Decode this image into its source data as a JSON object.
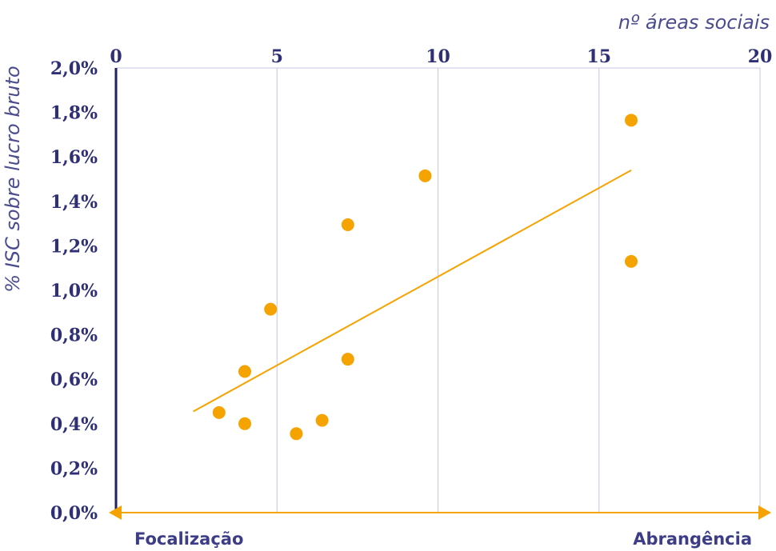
{
  "chart_data": {
    "type": "scatter",
    "xlabel": "nº áreas sociais",
    "ylabel": "% ISC sobre lucro bruto",
    "x_ticks": [
      "0",
      "5",
      "10",
      "15",
      "20"
    ],
    "y_ticks": [
      "0,0%",
      "0,2%",
      "0,4%",
      "0,6%",
      "0,8%",
      "1,0%",
      "1,2%",
      "1,4%",
      "1,6%",
      "1,8%",
      "2,0%"
    ],
    "xlim": [
      0,
      20
    ],
    "ylim": [
      0,
      2.0
    ],
    "grid": {
      "vertical": true,
      "horizontal": false
    },
    "series": [
      {
        "points": [
          {
            "x": 3.2,
            "y": 0.45
          },
          {
            "x": 4.0,
            "y": 0.4
          },
          {
            "x": 4.0,
            "y": 0.635
          },
          {
            "x": 4.8,
            "y": 0.915
          },
          {
            "x": 5.6,
            "y": 0.355
          },
          {
            "x": 6.4,
            "y": 0.415
          },
          {
            "x": 7.2,
            "y": 1.295
          },
          {
            "x": 7.2,
            "y": 0.69
          },
          {
            "x": 9.6,
            "y": 1.515
          },
          {
            "x": 16.0,
            "y": 1.765
          },
          {
            "x": 16.0,
            "y": 1.13
          }
        ]
      }
    ],
    "trendline": {
      "x": [
        2.4,
        16.0
      ],
      "y": [
        0.455,
        1.54
      ]
    },
    "bottom_left_label": "Focalização",
    "bottom_right_label": "Abrangência",
    "colors": {
      "points": "#f5a300",
      "trend": "#f5a300",
      "grid": "#c5c6e0",
      "text": "#2e2f74",
      "y_axis": "#1f2162",
      "x_axis": "#f5a300"
    }
  }
}
